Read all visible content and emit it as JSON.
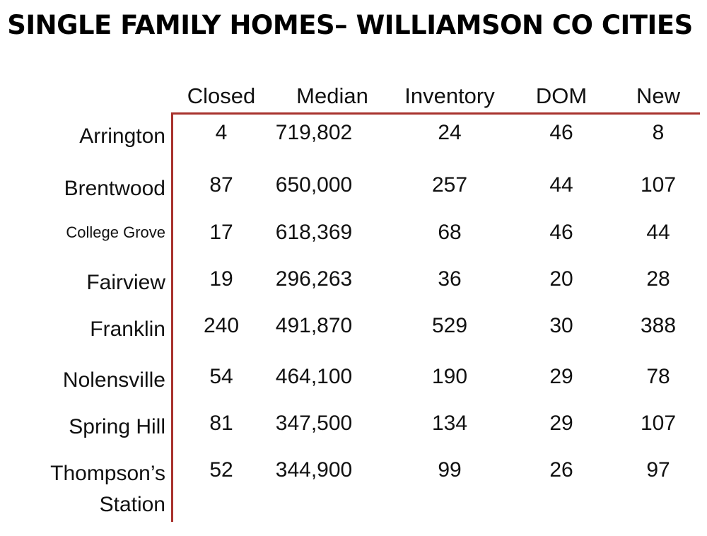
{
  "title": "SINGLE FAMILY HOMES– WILLIAMSON CO CITIES",
  "columns": [
    "Closed",
    "Median",
    "Inventory",
    "DOM",
    "New"
  ],
  "rows": [
    {
      "city": "Arrington",
      "closed": "4",
      "median": "719,802",
      "inventory": "24",
      "dom": "46",
      "new": "8"
    },
    {
      "city": "Brentwood",
      "closed": "87",
      "median": "650,000",
      "inventory": "257",
      "dom": "44",
      "new": "107"
    },
    {
      "city": "College Grove",
      "closed": "17",
      "median": "618,369",
      "inventory": "68",
      "dom": "46",
      "new": "44"
    },
    {
      "city": "Fairview",
      "closed": "19",
      "median": "296,263",
      "inventory": "36",
      "dom": "20",
      "new": "28"
    },
    {
      "city": "Franklin",
      "closed": "240",
      "median": "491,870",
      "inventory": "529",
      "dom": "30",
      "new": "388"
    },
    {
      "city": "Nolensville",
      "closed": "54",
      "median": "464,100",
      "inventory": "190",
      "dom": "29",
      "new": "78"
    },
    {
      "city": "Spring Hill",
      "closed": "81",
      "median": "347,500",
      "inventory": "134",
      "dom": "29",
      "new": "107"
    },
    {
      "city_line1": "Thompson’s",
      "city_line2": "Station",
      "closed": "52",
      "median": "344,900",
      "inventory": "99",
      "dom": "26",
      "new": "97"
    }
  ],
  "colors": {
    "rule": "#a8322d",
    "text": "#111111"
  }
}
